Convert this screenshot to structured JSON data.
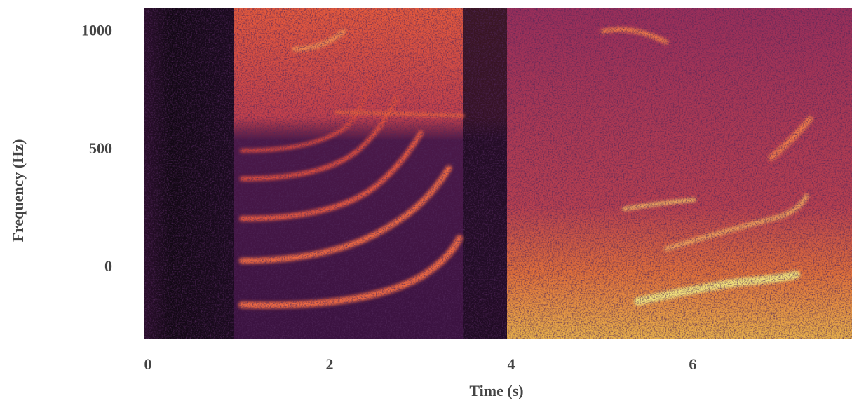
{
  "chart_data": {
    "type": "spectrogram",
    "xlabel": "Time (s)",
    "ylabel": "Frequency (Hz)",
    "xlim": [
      0,
      7.8
    ],
    "xticks": [
      0,
      2,
      4,
      6
    ],
    "ylim": [
      -300,
      1100
    ],
    "yticks": [
      0,
      500,
      1000
    ],
    "grid": false
  }
}
